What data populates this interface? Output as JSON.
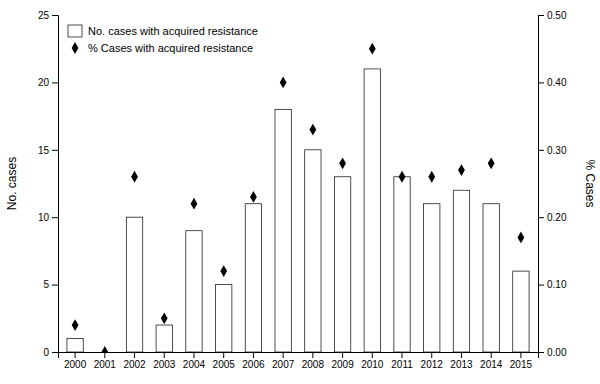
{
  "chart_data": {
    "type": "bar",
    "categories": [
      "2000",
      "2001",
      "2002",
      "2003",
      "2004",
      "2005",
      "2006",
      "2007",
      "2008",
      "2009",
      "2010",
      "2011",
      "2012",
      "2013",
      "2014",
      "2015"
    ],
    "series": [
      {
        "name": "No. cases with acquired resistance",
        "type": "bar",
        "color": "white",
        "values": [
          1,
          0,
          10,
          2,
          9,
          5,
          11,
          18,
          15,
          13,
          21,
          13,
          11,
          12,
          11,
          6
        ]
      },
      {
        "name": "% Cases with acquired resistance",
        "type": "scatter",
        "marker": "diamond",
        "color": "black",
        "axis": "y2",
        "values": [
          0.04,
          0.0,
          0.26,
          0.05,
          0.22,
          0.12,
          0.23,
          0.4,
          0.33,
          0.28,
          0.45,
          0.26,
          0.26,
          0.27,
          0.28,
          0.17
        ]
      }
    ],
    "ylabel": "No. cases",
    "y2label": "% Cases",
    "ylim": [
      0,
      25
    ],
    "yticks": [
      0,
      5,
      10,
      15,
      20,
      25
    ],
    "y2lim": [
      0,
      0.5
    ],
    "y2ticks": [
      {
        "value": 0.0,
        "label": "0.00"
      },
      {
        "value": 0.1,
        "label": "0.10"
      },
      {
        "value": 0.2,
        "label": "0.20"
      },
      {
        "value": 0.3,
        "label": "0.30"
      },
      {
        "value": 0.4,
        "label": "0.40"
      },
      {
        "value": 0.5,
        "label": "0.50"
      }
    ],
    "grid": false,
    "legend": "upper left"
  }
}
